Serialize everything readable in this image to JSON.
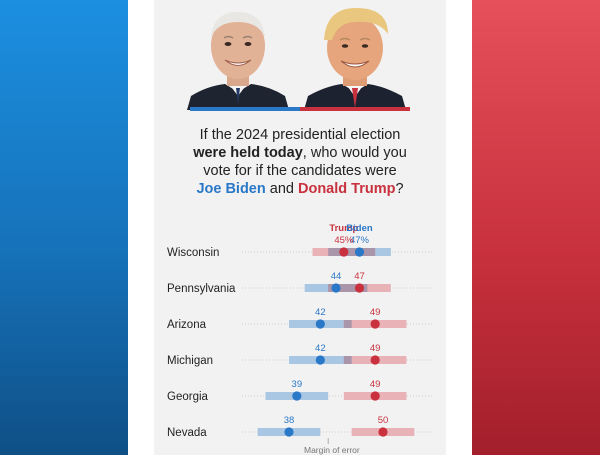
{
  "question": {
    "part1": "If the 2024 presidential election",
    "part2_bold": "were held today",
    "part3": ", who would you",
    "part4": "vote for if the candidates were",
    "biden": "Joe Biden",
    "and": " and ",
    "trump": "Donald Trump",
    "end": "?"
  },
  "colors": {
    "biden": "#2a78c8",
    "trump": "#c8313d",
    "biden_band": "#a9c6e2",
    "trump_band": "#e8b2b6",
    "overlap_band": "#a996ab",
    "left_panel": "#1672b9",
    "right_panel": "#c8313d"
  },
  "chart_data": {
    "type": "dot-range",
    "legend": {
      "trump": "Trump",
      "biden": "Biden"
    },
    "footnote": "Margin of error",
    "states": [
      {
        "name": "Wisconsin",
        "biden": 47,
        "trump": 45,
        "biden_label": "47%",
        "trump_label": "45%"
      },
      {
        "name": "Pennsylvania",
        "biden": 44,
        "trump": 47,
        "biden_label": "44",
        "trump_label": "47"
      },
      {
        "name": "Arizona",
        "biden": 42,
        "trump": 49,
        "biden_label": "42",
        "trump_label": "49"
      },
      {
        "name": "Michigan",
        "biden": 42,
        "trump": 49,
        "biden_label": "42",
        "trump_label": "49"
      },
      {
        "name": "Georgia",
        "biden": 39,
        "trump": 49,
        "biden_label": "39",
        "trump_label": "49"
      },
      {
        "name": "Nevada",
        "biden": 38,
        "trump": 50,
        "biden_label": "38",
        "trump_label": "50"
      }
    ],
    "margin_of_error": 4,
    "xlim": [
      32,
      56
    ]
  }
}
